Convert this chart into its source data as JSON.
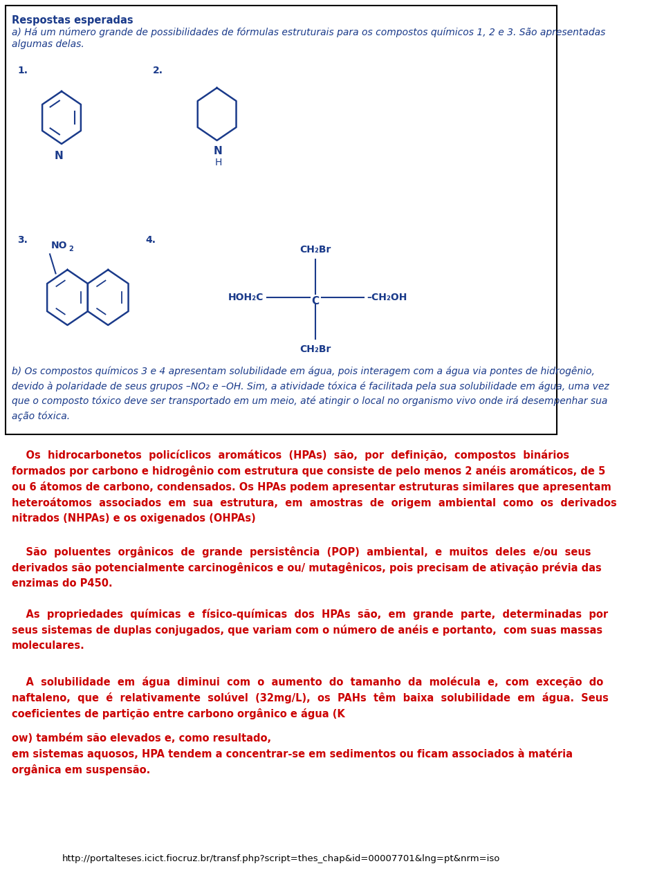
{
  "bg_color": "#ffffff",
  "box_border_color": "#000000",
  "box_bg_color": "#ffffff",
  "blue_color": "#1a3a8a",
  "red_color": "#cc0000",
  "dark_color": "#000000",
  "box_title": "Respostas esperadas",
  "box_text_a": "a) Há um número grande de possibilidades de fórmulas estruturais para os compostos químicos 1, 2 e 3. São apresentadas\nalgumas delas.",
  "box_text_b": "b) Os compostos químicos 3 e 4 apresentam solubilidade em água, pois interagem com a água via pontes de hidrogênio,\ndevido à polaridade de seus grupos –NO₂ e –OH. Sim, a atividade tóxica é facilitada pela sua solubilidade em água, uma vez\nque o composto tóxico deve ser transportado em um meio, até atingir o local no organismo vivo onde irá desempenhar sua\nação tóxica.",
  "para1": "    Os  hidrocarbonetos  policíclicos  aromáticos  (HPAs)  são,  por  definição,  compostos  binários\nformados por carbono e hidrogênio com estrutura que consiste de pelo menos 2 anéis aromáticos, de 5\nou 6 átomos de carbono, condensados. Os HPAs podem apresentar estruturas similares que apresentam\nheteroátomos  associados  em  sua  estrutura,  em  amostras  de  origem  ambiental  como  os  derivados\nnitrados (NHPAs) e os oxigenados (OHPAs)",
  "para2": "    São  poluentes  orgânicos  de  grande  persistência  (POP)  ambiental,  e  muitos  deles  e/ou  seus\nderivados são potencialmente carcinogênicos e ou/ mutagênicos, pois precisam de ativação prévia das\nenzimas do P450.",
  "para3": "    As  propriedades  químicas  e  físico-químicas  dos  HPAs  são,  em  grande  parte,  determinadas  por\nseus sistemas de duplas conjugados, que variam com o número de anéis e portanto,  com suas massas\nmoleculares.",
  "para4": "    A  solubilidade  em  água  diminui  com  o  aumento  do  tamanho  da  molécula  e,  com  exceção  do\nnaftaleno,  que  é  relativamente  solúvel  (32mg/L),  os  PAHs  têm  baixa  solubilidade  em  água.  Seus\ncoeficientes de partição entre carbono orgânico e água (K",
  "para4_kow": "ow",
  "para4_end": ") também são elevados e, como resultado,\nem sistemas aquosos, HPA tendem a concentrar-se em sedimentos ou ficam associados à matéria\norgânica em suspensão.",
  "url": "http://portalteses.icict.fiocruz.br/transf.php?script=thes_chap&id=00007701&lng=pt&nrm=iso"
}
